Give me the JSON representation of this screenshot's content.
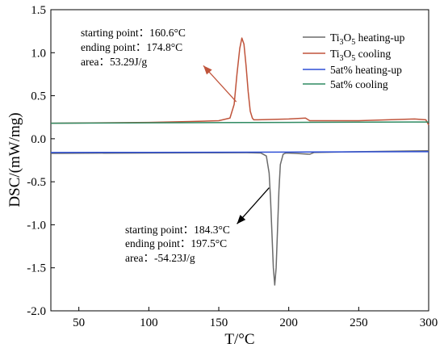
{
  "chart_data": {
    "type": "line",
    "xlabel": "T/°C",
    "ylabel": "DSC/(mW/mg)",
    "xlim": [
      30,
      300
    ],
    "ylim": [
      -2.0,
      1.5
    ],
    "x_ticks": [
      50,
      100,
      150,
      200,
      250,
      300
    ],
    "y_ticks": [
      -2.0,
      -1.5,
      -1.0,
      -0.5,
      0.0,
      0.5,
      1.0,
      1.5
    ],
    "x_tick_labels": [
      "50",
      "100",
      "150",
      "200",
      "250",
      "300"
    ],
    "y_tick_labels": [
      "-2.0",
      "-1.5",
      "-1.0",
      "-0.5",
      "0.0",
      "0.5",
      "1.0",
      "1.5"
    ],
    "grid": false,
    "legend_position": "top-right",
    "series": [
      {
        "name": "Ti3O5 heating-up",
        "legend_main": "Ti",
        "legend_sub1": "3",
        "legend_mid": "O",
        "legend_sub2": "5",
        "legend_rest": " heating-up",
        "color": "#6b6b6b",
        "x": [
          30,
          100,
          150,
          170,
          180,
          184,
          186,
          187,
          188,
          189,
          190,
          191,
          192,
          193,
          194,
          196,
          198,
          205,
          215,
          218,
          250,
          300
        ],
        "y": [
          -0.17,
          -0.165,
          -0.163,
          -0.162,
          -0.165,
          -0.2,
          -0.4,
          -0.7,
          -1.1,
          -1.5,
          -1.7,
          -1.5,
          -1.05,
          -0.6,
          -0.3,
          -0.18,
          -0.165,
          -0.17,
          -0.18,
          -0.16,
          -0.15,
          -0.14
        ]
      },
      {
        "name": "Ti3O5 cooling",
        "legend_main": "Ti",
        "legend_sub1": "3",
        "legend_mid": "O",
        "legend_sub2": "5",
        "legend_rest": " cooling",
        "color": "#c0543b",
        "x": [
          30,
          100,
          130,
          150,
          158,
          161,
          163,
          165,
          166.5,
          168,
          169.5,
          171,
          172.5,
          174,
          175,
          178,
          200,
          212,
          215,
          250,
          290,
          298,
          300
        ],
        "y": [
          0.18,
          0.19,
          0.2,
          0.21,
          0.24,
          0.4,
          0.75,
          1.05,
          1.17,
          1.1,
          0.85,
          0.55,
          0.32,
          0.24,
          0.22,
          0.22,
          0.23,
          0.24,
          0.21,
          0.21,
          0.23,
          0.22,
          0.16
        ]
      },
      {
        "name": "5at% heating-up",
        "legend_main": "5at% heating-up",
        "legend_sub1": "",
        "legend_mid": "",
        "legend_sub2": "",
        "legend_rest": "",
        "color": "#2e4fd6",
        "x": [
          30,
          100,
          200,
          300
        ],
        "y": [
          -0.16,
          -0.158,
          -0.155,
          -0.15
        ]
      },
      {
        "name": "5at% cooling",
        "legend_main": "5at% cooling",
        "legend_sub1": "",
        "legend_mid": "",
        "legend_sub2": "",
        "legend_rest": "",
        "color": "#2f8a62",
        "x": [
          30,
          100,
          200,
          300
        ],
        "y": [
          0.18,
          0.185,
          0.19,
          0.195
        ]
      }
    ],
    "annotations": [
      {
        "id": "cooling",
        "color": "#c0543b",
        "lines": [
          "starting point：160.6°C",
          "ending point：174.8°C",
          "area：53.29J/g"
        ]
      },
      {
        "id": "heating",
        "color": "#000000",
        "lines": [
          "starting point：184.3°C",
          "ending point：197.5°C",
          "area：-54.23J/g"
        ]
      }
    ],
    "arrows": [
      {
        "color": "#c0543b",
        "from": [
          162.5,
          0.43
        ],
        "to": [
          139,
          0.85
        ]
      },
      {
        "color": "#000000",
        "from": [
          186,
          -0.57
        ],
        "to": [
          163,
          -0.99
        ]
      }
    ]
  }
}
